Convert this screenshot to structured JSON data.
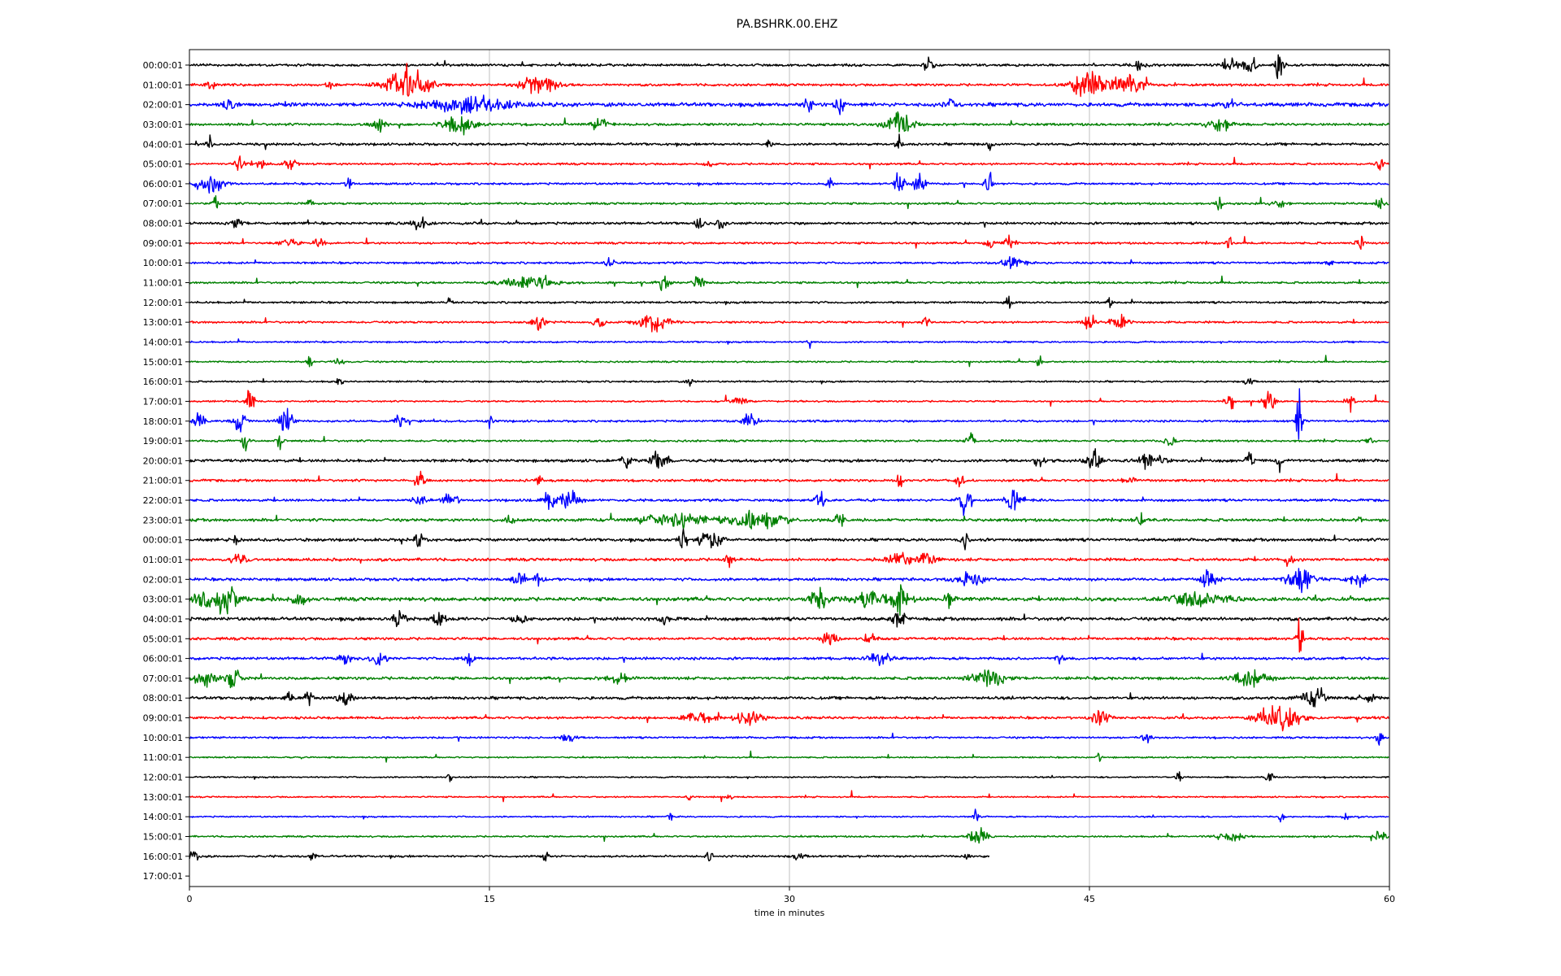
{
  "chart_data": {
    "type": "line",
    "title": "PA.BSHRK.00.EHZ",
    "xlabel": "time in minutes",
    "ylabel": "",
    "xlim": [
      0,
      60
    ],
    "x_ticks": [
      "0",
      "15",
      "30",
      "45",
      "60"
    ],
    "grid": {
      "vertical": true,
      "horizontal": false
    },
    "color_cycle": [
      "#000000",
      "#ff0000",
      "#0000ff",
      "#008000"
    ],
    "row_labels": [
      "00:00:01",
      "01:00:01",
      "02:00:01",
      "03:00:01",
      "04:00:01",
      "05:00:01",
      "06:00:01",
      "07:00:01",
      "08:00:01",
      "09:00:01",
      "10:00:01",
      "11:00:01",
      "12:00:01",
      "13:00:01",
      "14:00:01",
      "15:00:01",
      "16:00:01",
      "17:00:01",
      "18:00:01",
      "19:00:01",
      "20:00:01",
      "21:00:01",
      "22:00:01",
      "23:00:01",
      "00:00:01",
      "01:00:01",
      "02:00:01",
      "03:00:01",
      "04:00:01",
      "05:00:01",
      "06:00:01",
      "07:00:01",
      "08:00:01",
      "09:00:01",
      "10:00:01",
      "11:00:01",
      "12:00:01",
      "13:00:01",
      "14:00:01",
      "15:00:01",
      "16:00:01",
      "17:00:01"
    ],
    "trace_end_minute": [
      60,
      60,
      60,
      60,
      60,
      60,
      60,
      60,
      60,
      60,
      60,
      60,
      60,
      60,
      60,
      60,
      60,
      60,
      60,
      60,
      60,
      60,
      60,
      60,
      60,
      60,
      60,
      60,
      60,
      60,
      60,
      60,
      60,
      60,
      60,
      60,
      60,
      60,
      60,
      60,
      40,
      0
    ],
    "noise_level": [
      1.2,
      1.2,
      1.8,
      1.2,
      1.2,
      1.0,
      1.0,
      1.0,
      1.2,
      1.0,
      1.0,
      1.0,
      1.0,
      1.0,
      0.8,
      0.8,
      0.8,
      0.8,
      1.0,
      1.0,
      1.4,
      1.2,
      1.2,
      1.4,
      1.4,
      1.4,
      1.4,
      1.8,
      1.6,
      1.3,
      1.3,
      1.4,
      1.4,
      1.2,
      0.9,
      0.7,
      0.7,
      0.7,
      0.7,
      0.8,
      1.0,
      0
    ],
    "events": [
      [
        [
          37,
          9,
          0.3
        ],
        [
          47.5,
          6,
          0.5
        ],
        [
          53,
          14,
          0.4
        ],
        [
          54.5,
          18,
          0.3
        ],
        [
          52,
          10,
          0.5
        ]
      ],
      [
        [
          1,
          10,
          0.3
        ],
        [
          7,
          9,
          0.2
        ],
        [
          11,
          22,
          1.5
        ],
        [
          17.5,
          12,
          1.2
        ],
        [
          45,
          20,
          1.2
        ],
        [
          47,
          16,
          1.0
        ]
      ],
      [
        [
          2,
          8,
          0.4
        ],
        [
          14,
          9,
          3
        ],
        [
          31,
          14,
          0.3
        ],
        [
          32.5,
          12,
          0.3
        ],
        [
          38,
          12,
          0.3
        ],
        [
          52,
          8,
          0.3
        ]
      ],
      [
        [
          9.5,
          8,
          0.5
        ],
        [
          13.5,
          12,
          1.0
        ],
        [
          20.5,
          6,
          0.6
        ],
        [
          35.5,
          14,
          1.0
        ],
        [
          51.5,
          10,
          0.8
        ]
      ],
      [
        [
          1,
          9,
          0.2
        ],
        [
          29,
          8,
          0.2
        ],
        [
          35.5,
          20,
          0.2
        ],
        [
          40,
          10,
          0.2
        ]
      ],
      [
        [
          2.5,
          8,
          0.3
        ],
        [
          3.5,
          7,
          0.5
        ],
        [
          5,
          8,
          0.4
        ],
        [
          26,
          7,
          0.2
        ],
        [
          59.5,
          6,
          0.3
        ]
      ],
      [
        [
          1,
          10,
          1.2
        ],
        [
          8,
          14,
          0.2
        ],
        [
          32,
          10,
          0.2
        ],
        [
          35.5,
          16,
          0.3
        ],
        [
          36.5,
          12,
          0.4
        ],
        [
          40,
          14,
          0.3
        ]
      ],
      [
        [
          1.3,
          14,
          0.2
        ],
        [
          6,
          7,
          0.2
        ],
        [
          51.5,
          9,
          0.2
        ],
        [
          54.5,
          6,
          0.5
        ],
        [
          59.5,
          7,
          0.3
        ]
      ],
      [
        [
          2.3,
          7,
          0.5
        ],
        [
          11.5,
          9,
          0.5
        ],
        [
          25.5,
          8,
          0.3
        ],
        [
          26.6,
          8,
          0.3
        ]
      ],
      [
        [
          5,
          6,
          0.6
        ],
        [
          6.5,
          6,
          0.4
        ],
        [
          40,
          8,
          0.3
        ],
        [
          41,
          10,
          0.4
        ],
        [
          52,
          8,
          0.2
        ],
        [
          58.5,
          10,
          0.3
        ]
      ],
      [
        [
          21,
          7,
          0.3
        ],
        [
          41.2,
          8,
          0.7
        ],
        [
          57,
          6,
          0.2
        ]
      ],
      [
        [
          17,
          6,
          2.0
        ],
        [
          23.7,
          9,
          0.4
        ],
        [
          25.5,
          8,
          0.4
        ]
      ],
      [
        [
          13,
          10,
          0.2
        ],
        [
          41,
          8,
          0.3
        ],
        [
          46,
          6,
          0.2
        ]
      ],
      [
        [
          17.5,
          8,
          0.5
        ],
        [
          20.5,
          9,
          0.4
        ],
        [
          23.2,
          11,
          1.0
        ],
        [
          36.8,
          8,
          0.3
        ],
        [
          45,
          10,
          0.4
        ],
        [
          46.5,
          9,
          0.6
        ]
      ],
      [
        [
          31,
          6,
          0.2
        ]
      ],
      [
        [
          6,
          7,
          0.2
        ],
        [
          7.5,
          5,
          0.4
        ],
        [
          42.5,
          7,
          0.2
        ]
      ],
      [
        [
          7.5,
          5,
          0.2
        ],
        [
          25,
          5,
          0.2
        ],
        [
          53,
          8,
          0.3
        ]
      ],
      [
        [
          3,
          16,
          0.3
        ],
        [
          27.5,
          7,
          0.5
        ],
        [
          52,
          16,
          0.3
        ],
        [
          54,
          18,
          0.4
        ],
        [
          58,
          12,
          0.3
        ]
      ],
      [
        [
          0.5,
          12,
          0.4
        ],
        [
          2.5,
          14,
          0.4
        ],
        [
          4.8,
          14,
          0.5
        ],
        [
          10.5,
          8,
          0.4
        ],
        [
          15,
          10,
          0.2
        ],
        [
          28,
          8,
          0.6
        ],
        [
          55.5,
          40,
          0.2
        ]
      ],
      [
        [
          2.8,
          14,
          0.2
        ],
        [
          4.5,
          10,
          0.3
        ],
        [
          39,
          8,
          0.4
        ],
        [
          49,
          8,
          0.4
        ],
        [
          59,
          6,
          0.2
        ]
      ],
      [
        [
          21.8,
          12,
          0.3
        ],
        [
          23.5,
          12,
          0.6
        ],
        [
          42.5,
          10,
          0.3
        ],
        [
          45.2,
          14,
          0.5
        ],
        [
          48,
          12,
          0.8
        ],
        [
          53,
          14,
          0.2
        ],
        [
          54.5,
          12,
          0.2
        ]
      ],
      [
        [
          11.5,
          14,
          0.3
        ],
        [
          17.5,
          10,
          0.2
        ],
        [
          35.5,
          14,
          0.2
        ],
        [
          38.5,
          10,
          0.3
        ],
        [
          47,
          6,
          0.5
        ]
      ],
      [
        [
          11.5,
          10,
          0.4
        ],
        [
          13,
          8,
          0.6
        ],
        [
          18,
          14,
          0.4
        ],
        [
          19,
          12,
          0.6
        ],
        [
          31.5,
          10,
          0.4
        ],
        [
          38.8,
          18,
          0.4
        ],
        [
          41.2,
          14,
          0.5
        ]
      ],
      [
        [
          16,
          8,
          0.3
        ],
        [
          24.5,
          8,
          2.5
        ],
        [
          28.5,
          10,
          1.8
        ],
        [
          32.5,
          10,
          0.3
        ],
        [
          47.5,
          8,
          0.3
        ],
        [
          58.5,
          6,
          0.2
        ]
      ],
      [
        [
          2.3,
          8,
          0.2
        ],
        [
          11.5,
          9,
          0.3
        ],
        [
          24.7,
          12,
          0.3
        ],
        [
          26,
          12,
          0.8
        ],
        [
          38.8,
          10,
          0.3
        ]
      ],
      [
        [
          2.5,
          9,
          0.5
        ],
        [
          27,
          8,
          0.3
        ],
        [
          35.5,
          8,
          1.0
        ],
        [
          37,
          10,
          0.6
        ],
        [
          55,
          10,
          0.3
        ]
      ],
      [
        [
          16.5,
          10,
          0.4
        ],
        [
          17.5,
          8,
          0.3
        ],
        [
          39,
          8,
          1.0
        ],
        [
          51,
          10,
          0.6
        ],
        [
          55.5,
          14,
          1.0
        ],
        [
          58.5,
          8,
          0.6
        ]
      ],
      [
        [
          1,
          12,
          1.2
        ],
        [
          2,
          14,
          0.8
        ],
        [
          5.5,
          9,
          0.5
        ],
        [
          31.5,
          12,
          0.6
        ],
        [
          34,
          10,
          1.2
        ],
        [
          35.5,
          14,
          0.8
        ],
        [
          38,
          10,
          0.4
        ],
        [
          50.5,
          9,
          1.8
        ]
      ],
      [
        [
          10.5,
          10,
          0.4
        ],
        [
          12.5,
          8,
          0.4
        ],
        [
          16.5,
          8,
          0.4
        ],
        [
          23.8,
          8,
          0.3
        ],
        [
          35.5,
          12,
          0.4
        ]
      ],
      [
        [
          32,
          9,
          0.5
        ],
        [
          34,
          6,
          0.4
        ],
        [
          55.5,
          40,
          0.2
        ]
      ],
      [
        [
          7.8,
          8,
          0.4
        ],
        [
          9.5,
          10,
          0.5
        ],
        [
          14,
          8,
          0.3
        ],
        [
          34.5,
          8,
          0.8
        ],
        [
          43.5,
          7,
          0.3
        ]
      ],
      [
        [
          0.8,
          10,
          0.8
        ],
        [
          2.2,
          10,
          0.5
        ],
        [
          21.5,
          6,
          1.0
        ],
        [
          40,
          9,
          1.2
        ],
        [
          53,
          8,
          1.2
        ]
      ],
      [
        [
          5,
          8,
          0.3
        ],
        [
          6,
          12,
          0.3
        ],
        [
          7.8,
          10,
          0.5
        ],
        [
          56.2,
          10,
          0.8
        ],
        [
          59,
          6,
          0.3
        ]
      ],
      [
        [
          25.5,
          8,
          1.0
        ],
        [
          28,
          9,
          1.0
        ],
        [
          45.5,
          9,
          0.6
        ],
        [
          54.5,
          20,
          1.3
        ]
      ],
      [
        [
          19,
          5,
          0.6
        ],
        [
          47.8,
          7,
          0.3
        ],
        [
          59.5,
          9,
          0.2
        ]
      ],
      [
        [
          45.5,
          5,
          0.2
        ]
      ],
      [
        [
          13,
          5,
          0.2
        ],
        [
          49.5,
          9,
          0.2
        ],
        [
          54,
          12,
          0.2
        ]
      ],
      [
        [
          25,
          6,
          0.2
        ],
        [
          27,
          5,
          0.2
        ]
      ],
      [
        [
          24,
          5,
          0.2
        ],
        [
          39.3,
          8,
          0.2
        ],
        [
          54.6,
          6,
          0.2
        ],
        [
          57.8,
          5,
          0.2
        ]
      ],
      [
        [
          39.5,
          12,
          0.6
        ],
        [
          52,
          5,
          1.0
        ],
        [
          59.5,
          7,
          0.4
        ]
      ],
      [
        [
          0.2,
          8,
          0.3
        ],
        [
          6.2,
          7,
          0.2
        ],
        [
          17.8,
          9,
          0.2
        ],
        [
          26,
          8,
          0.2
        ],
        [
          30.5,
          6,
          0.4
        ],
        [
          38.8,
          5,
          0.2
        ]
      ],
      []
    ]
  }
}
